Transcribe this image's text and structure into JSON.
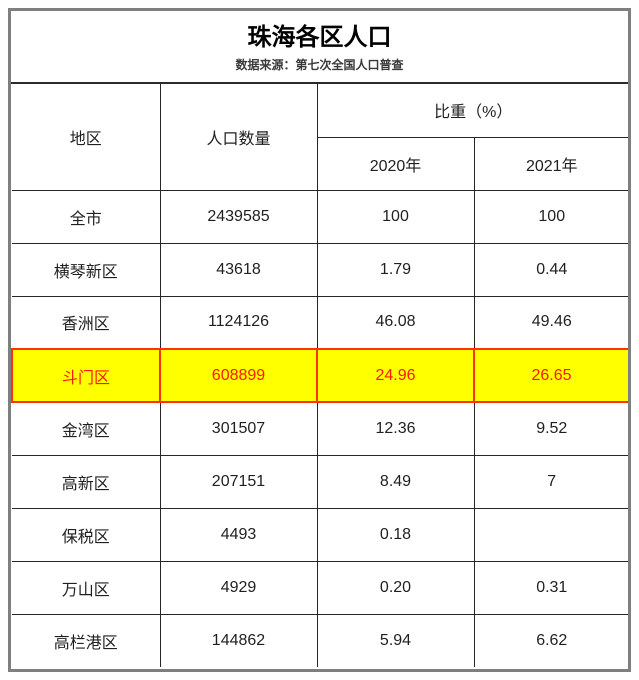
{
  "header": {
    "title": "珠海各区人口",
    "subtitle": "数据来源：第七次全国人口普查"
  },
  "table": {
    "headers": {
      "region": "地区",
      "population": "人口数量",
      "share": "比重（%）",
      "y2020": "2020年",
      "y2021": "2021年"
    },
    "rows": [
      {
        "cells": [
          "全市",
          "2439585",
          "100",
          "100"
        ],
        "highlight": false
      },
      {
        "cells": [
          "横琴新区",
          "43618",
          "1.79",
          "0.44"
        ],
        "highlight": false
      },
      {
        "cells": [
          "香洲区",
          "1124126",
          "46.08",
          "49.46"
        ],
        "highlight": false
      },
      {
        "cells": [
          "斗门区",
          "608899",
          "24.96",
          "26.65"
        ],
        "highlight": true
      },
      {
        "cells": [
          "金湾区",
          "301507",
          "12.36",
          "9.52"
        ],
        "highlight": false
      },
      {
        "cells": [
          "高新区",
          "207151",
          "8.49",
          "7"
        ],
        "highlight": false
      },
      {
        "cells": [
          "保税区",
          "4493",
          "0.18",
          ""
        ],
        "highlight": false
      },
      {
        "cells": [
          "万山区",
          "4929",
          "0.20",
          "0.31"
        ],
        "highlight": false
      },
      {
        "cells": [
          "高栏港区",
          "144862",
          "5.94",
          "6.62"
        ],
        "highlight": false
      }
    ]
  },
  "colors": {
    "highlight_bg": "#FFFF00",
    "highlight_text": "#FF1A00",
    "highlight_border": "#FF3300",
    "table_border": "#262626",
    "frame_border": "#7F7F7F"
  },
  "chart_data": {
    "type": "table",
    "title": "珠海各区人口",
    "subtitle": "数据来源：第七次全国人口普查",
    "columns": [
      "地区",
      "人口数量",
      "比重(%) 2020年",
      "比重(%) 2021年"
    ],
    "rows": [
      [
        "全市",
        2439585,
        100,
        100
      ],
      [
        "横琴新区",
        43618,
        1.79,
        0.44
      ],
      [
        "香洲区",
        1124126,
        46.08,
        49.46
      ],
      [
        "斗门区",
        608899,
        24.96,
        26.65
      ],
      [
        "金湾区",
        301507,
        12.36,
        9.52
      ],
      [
        "高新区",
        207151,
        8.49,
        7
      ],
      [
        "保税区",
        4493,
        0.18,
        null
      ],
      [
        "万山区",
        4929,
        0.2,
        0.31
      ],
      [
        "高栏港区",
        144862,
        5.94,
        6.62
      ]
    ],
    "highlighted_row": "斗门区",
    "layout_hints": {
      "highlight_style": "yellow fill, red font, red border",
      "grid": "on"
    }
  }
}
